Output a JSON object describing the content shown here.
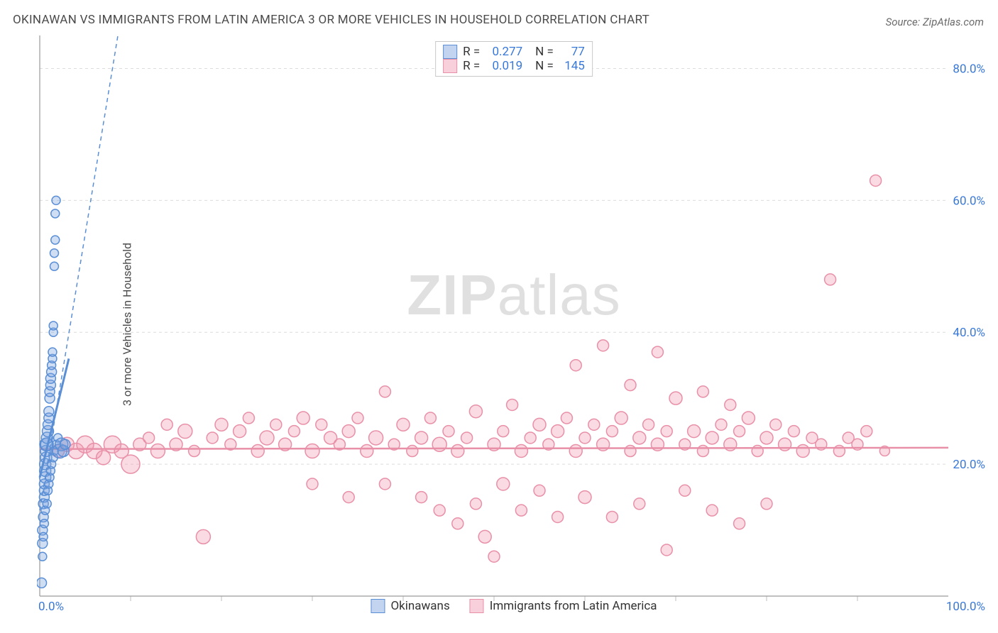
{
  "title": "OKINAWAN VS IMMIGRANTS FROM LATIN AMERICA 3 OR MORE VEHICLES IN HOUSEHOLD CORRELATION CHART",
  "source_prefix": "Source: ",
  "source_site": "ZipAtlas.com",
  "ylabel": "3 or more Vehicles in Household",
  "watermark_zip": "ZIP",
  "watermark_atlas": "atlas",
  "chart": {
    "type": "scatter",
    "background_color": "#ffffff",
    "grid_color": "#dcdcdc",
    "axis_color": "#9a9a9a",
    "tick_color": "#bfbfbf",
    "xlim": [
      0,
      100
    ],
    "ylim": [
      0,
      85
    ],
    "x_axis_label_min": "0.0%",
    "x_axis_label_max": "100.0%",
    "yticks": [
      {
        "v": 20,
        "label": "20.0%"
      },
      {
        "v": 40,
        "label": "40.0%"
      },
      {
        "v": 60,
        "label": "60.0%"
      },
      {
        "v": 80,
        "label": "80.0%"
      }
    ],
    "xticks_minor": [
      10,
      20,
      30,
      40,
      50,
      60,
      70,
      80,
      90
    ],
    "axis_label_color": "#3878d8",
    "axis_label_fontsize": 17,
    "marker_radius_base": 8,
    "marker_stroke_width": 1.5
  },
  "series_a": {
    "name": "Okinawans",
    "fill": "rgba(120,160,220,0.35)",
    "stroke": "#5a8fd6",
    "swatch_fill": "rgba(120,160,220,0.45)",
    "swatch_stroke": "#5a8fd6",
    "R_label": "R =",
    "R_value": "0.277",
    "N_label": "N =",
    "N_value": "77",
    "trend": {
      "x1": 0,
      "y1": 13,
      "x2": 8.6,
      "y2": 85,
      "dash": "6,5",
      "width": 1.5
    },
    "solid_segment": {
      "x1": 0,
      "y1": 18,
      "x2": 3.2,
      "y2": 36,
      "width": 3
    },
    "points": [
      {
        "x": 0.2,
        "y": 2,
        "r": 7
      },
      {
        "x": 0.3,
        "y": 8,
        "r": 7
      },
      {
        "x": 0.3,
        "y": 10,
        "r": 7
      },
      {
        "x": 0.4,
        "y": 12,
        "r": 7
      },
      {
        "x": 0.4,
        "y": 14,
        "r": 7
      },
      {
        "x": 0.5,
        "y": 15,
        "r": 7
      },
      {
        "x": 0.5,
        "y": 16,
        "r": 7
      },
      {
        "x": 0.5,
        "y": 17,
        "r": 7
      },
      {
        "x": 0.6,
        "y": 18,
        "r": 8
      },
      {
        "x": 0.6,
        "y": 19,
        "r": 8
      },
      {
        "x": 0.6,
        "y": 20,
        "r": 8
      },
      {
        "x": 0.7,
        "y": 21,
        "r": 8
      },
      {
        "x": 0.7,
        "y": 22,
        "r": 8
      },
      {
        "x": 0.7,
        "y": 23,
        "r": 9
      },
      {
        "x": 0.8,
        "y": 23,
        "r": 9
      },
      {
        "x": 0.8,
        "y": 24,
        "r": 8
      },
      {
        "x": 0.9,
        "y": 25,
        "r": 8
      },
      {
        "x": 0.9,
        "y": 26,
        "r": 7
      },
      {
        "x": 1.0,
        "y": 27,
        "r": 7
      },
      {
        "x": 1.0,
        "y": 28,
        "r": 7
      },
      {
        "x": 1.1,
        "y": 30,
        "r": 7
      },
      {
        "x": 1.1,
        "y": 31,
        "r": 7
      },
      {
        "x": 1.2,
        "y": 32,
        "r": 7
      },
      {
        "x": 1.2,
        "y": 33,
        "r": 7
      },
      {
        "x": 1.3,
        "y": 34,
        "r": 7
      },
      {
        "x": 1.3,
        "y": 35,
        "r": 6
      },
      {
        "x": 1.4,
        "y": 36,
        "r": 6
      },
      {
        "x": 1.4,
        "y": 37,
        "r": 6
      },
      {
        "x": 1.5,
        "y": 40,
        "r": 6
      },
      {
        "x": 1.5,
        "y": 41,
        "r": 6
      },
      {
        "x": 1.6,
        "y": 50,
        "r": 6
      },
      {
        "x": 1.6,
        "y": 52,
        "r": 6
      },
      {
        "x": 1.7,
        "y": 54,
        "r": 6
      },
      {
        "x": 1.7,
        "y": 58,
        "r": 6
      },
      {
        "x": 1.8,
        "y": 60,
        "r": 6
      },
      {
        "x": 0.3,
        "y": 6,
        "r": 6
      },
      {
        "x": 0.4,
        "y": 9,
        "r": 6
      },
      {
        "x": 0.5,
        "y": 11,
        "r": 6
      },
      {
        "x": 0.6,
        "y": 13,
        "r": 6
      },
      {
        "x": 0.8,
        "y": 14,
        "r": 6
      },
      {
        "x": 0.9,
        "y": 16,
        "r": 6
      },
      {
        "x": 1.0,
        "y": 17,
        "r": 6
      },
      {
        "x": 1.1,
        "y": 18,
        "r": 6
      },
      {
        "x": 1.2,
        "y": 19,
        "r": 6
      },
      {
        "x": 1.3,
        "y": 20,
        "r": 6
      },
      {
        "x": 1.5,
        "y": 21,
        "r": 6
      },
      {
        "x": 1.6,
        "y": 22,
        "r": 6
      },
      {
        "x": 1.8,
        "y": 23,
        "r": 6
      },
      {
        "x": 2.0,
        "y": 24,
        "r": 6
      },
      {
        "x": 2.2,
        "y": 22,
        "r": 10
      },
      {
        "x": 2.4,
        "y": 23,
        "r": 9
      },
      {
        "x": 2.6,
        "y": 22,
        "r": 8
      },
      {
        "x": 2.8,
        "y": 23,
        "r": 7
      }
    ]
  },
  "series_b": {
    "name": "Immigrants from Latin America",
    "fill": "rgba(240,150,175,0.35)",
    "stroke": "#e890a8",
    "swatch_fill": "rgba(240,150,175,0.45)",
    "swatch_stroke": "#e890a8",
    "R_label": "R =",
    "R_value": "0.019",
    "N_label": "N =",
    "N_value": "145",
    "trend": {
      "x1": 0,
      "y1": 22.3,
      "x2": 100,
      "y2": 22.5,
      "width": 2.5
    },
    "points": [
      {
        "x": 2,
        "y": 22,
        "r": 9
      },
      {
        "x": 3,
        "y": 23,
        "r": 10
      },
      {
        "x": 4,
        "y": 22,
        "r": 11
      },
      {
        "x": 5,
        "y": 23,
        "r": 12
      },
      {
        "x": 6,
        "y": 22,
        "r": 11
      },
      {
        "x": 7,
        "y": 21,
        "r": 10
      },
      {
        "x": 8,
        "y": 23,
        "r": 12
      },
      {
        "x": 9,
        "y": 22,
        "r": 10
      },
      {
        "x": 10,
        "y": 20,
        "r": 13
      },
      {
        "x": 11,
        "y": 23,
        "r": 9
      },
      {
        "x": 12,
        "y": 24,
        "r": 8
      },
      {
        "x": 13,
        "y": 22,
        "r": 10
      },
      {
        "x": 14,
        "y": 26,
        "r": 8
      },
      {
        "x": 15,
        "y": 23,
        "r": 9
      },
      {
        "x": 16,
        "y": 25,
        "r": 10
      },
      {
        "x": 17,
        "y": 22,
        "r": 8
      },
      {
        "x": 18,
        "y": 9,
        "r": 10
      },
      {
        "x": 19,
        "y": 24,
        "r": 8
      },
      {
        "x": 20,
        "y": 26,
        "r": 9
      },
      {
        "x": 21,
        "y": 23,
        "r": 8
      },
      {
        "x": 22,
        "y": 25,
        "r": 9
      },
      {
        "x": 23,
        "y": 27,
        "r": 8
      },
      {
        "x": 24,
        "y": 22,
        "r": 9
      },
      {
        "x": 25,
        "y": 24,
        "r": 10
      },
      {
        "x": 26,
        "y": 26,
        "r": 8
      },
      {
        "x": 27,
        "y": 23,
        "r": 9
      },
      {
        "x": 28,
        "y": 25,
        "r": 8
      },
      {
        "x": 29,
        "y": 27,
        "r": 9
      },
      {
        "x": 30,
        "y": 22,
        "r": 10
      },
      {
        "x": 30,
        "y": 17,
        "r": 8
      },
      {
        "x": 31,
        "y": 26,
        "r": 8
      },
      {
        "x": 32,
        "y": 24,
        "r": 9
      },
      {
        "x": 33,
        "y": 23,
        "r": 8
      },
      {
        "x": 34,
        "y": 25,
        "r": 9
      },
      {
        "x": 34,
        "y": 15,
        "r": 8
      },
      {
        "x": 35,
        "y": 27,
        "r": 8
      },
      {
        "x": 36,
        "y": 22,
        "r": 9
      },
      {
        "x": 37,
        "y": 24,
        "r": 10
      },
      {
        "x": 38,
        "y": 31,
        "r": 8
      },
      {
        "x": 38,
        "y": 17,
        "r": 8
      },
      {
        "x": 39,
        "y": 23,
        "r": 8
      },
      {
        "x": 40,
        "y": 26,
        "r": 9
      },
      {
        "x": 41,
        "y": 22,
        "r": 8
      },
      {
        "x": 42,
        "y": 24,
        "r": 9
      },
      {
        "x": 42,
        "y": 15,
        "r": 8
      },
      {
        "x": 43,
        "y": 27,
        "r": 8
      },
      {
        "x": 44,
        "y": 23,
        "r": 10
      },
      {
        "x": 44,
        "y": 13,
        "r": 8
      },
      {
        "x": 45,
        "y": 25,
        "r": 8
      },
      {
        "x": 46,
        "y": 22,
        "r": 9
      },
      {
        "x": 46,
        "y": 11,
        "r": 8
      },
      {
        "x": 47,
        "y": 24,
        "r": 8
      },
      {
        "x": 48,
        "y": 28,
        "r": 9
      },
      {
        "x": 48,
        "y": 14,
        "r": 8
      },
      {
        "x": 49,
        "y": 9,
        "r": 9
      },
      {
        "x": 50,
        "y": 6,
        "r": 8
      },
      {
        "x": 50,
        "y": 23,
        "r": 9
      },
      {
        "x": 51,
        "y": 25,
        "r": 8
      },
      {
        "x": 51,
        "y": 17,
        "r": 9
      },
      {
        "x": 52,
        "y": 29,
        "r": 8
      },
      {
        "x": 53,
        "y": 22,
        "r": 9
      },
      {
        "x": 53,
        "y": 13,
        "r": 8
      },
      {
        "x": 54,
        "y": 24,
        "r": 8
      },
      {
        "x": 55,
        "y": 26,
        "r": 9
      },
      {
        "x": 55,
        "y": 16,
        "r": 8
      },
      {
        "x": 56,
        "y": 23,
        "r": 8
      },
      {
        "x": 57,
        "y": 25,
        "r": 9
      },
      {
        "x": 57,
        "y": 12,
        "r": 8
      },
      {
        "x": 58,
        "y": 27,
        "r": 8
      },
      {
        "x": 59,
        "y": 22,
        "r": 9
      },
      {
        "x": 59,
        "y": 35,
        "r": 8
      },
      {
        "x": 60,
        "y": 24,
        "r": 8
      },
      {
        "x": 60,
        "y": 15,
        "r": 9
      },
      {
        "x": 61,
        "y": 26,
        "r": 8
      },
      {
        "x": 62,
        "y": 23,
        "r": 9
      },
      {
        "x": 62,
        "y": 38,
        "r": 8
      },
      {
        "x": 63,
        "y": 25,
        "r": 8
      },
      {
        "x": 63,
        "y": 12,
        "r": 8
      },
      {
        "x": 64,
        "y": 27,
        "r": 9
      },
      {
        "x": 65,
        "y": 22,
        "r": 8
      },
      {
        "x": 65,
        "y": 32,
        "r": 8
      },
      {
        "x": 66,
        "y": 24,
        "r": 9
      },
      {
        "x": 66,
        "y": 14,
        "r": 8
      },
      {
        "x": 67,
        "y": 26,
        "r": 8
      },
      {
        "x": 68,
        "y": 23,
        "r": 9
      },
      {
        "x": 68,
        "y": 37,
        "r": 8
      },
      {
        "x": 69,
        "y": 25,
        "r": 8
      },
      {
        "x": 69,
        "y": 7,
        "r": 8
      },
      {
        "x": 70,
        "y": 30,
        "r": 9
      },
      {
        "x": 71,
        "y": 23,
        "r": 8
      },
      {
        "x": 71,
        "y": 16,
        "r": 8
      },
      {
        "x": 72,
        "y": 25,
        "r": 9
      },
      {
        "x": 73,
        "y": 22,
        "r": 8
      },
      {
        "x": 73,
        "y": 31,
        "r": 8
      },
      {
        "x": 74,
        "y": 24,
        "r": 9
      },
      {
        "x": 74,
        "y": 13,
        "r": 8
      },
      {
        "x": 75,
        "y": 26,
        "r": 8
      },
      {
        "x": 76,
        "y": 23,
        "r": 9
      },
      {
        "x": 76,
        "y": 29,
        "r": 8
      },
      {
        "x": 77,
        "y": 25,
        "r": 8
      },
      {
        "x": 77,
        "y": 11,
        "r": 8
      },
      {
        "x": 78,
        "y": 27,
        "r": 9
      },
      {
        "x": 79,
        "y": 22,
        "r": 8
      },
      {
        "x": 80,
        "y": 24,
        "r": 9
      },
      {
        "x": 80,
        "y": 14,
        "r": 8
      },
      {
        "x": 81,
        "y": 26,
        "r": 8
      },
      {
        "x": 82,
        "y": 23,
        "r": 9
      },
      {
        "x": 83,
        "y": 25,
        "r": 8
      },
      {
        "x": 84,
        "y": 22,
        "r": 9
      },
      {
        "x": 85,
        "y": 24,
        "r": 8
      },
      {
        "x": 86,
        "y": 23,
        "r": 8
      },
      {
        "x": 87,
        "y": 48,
        "r": 8
      },
      {
        "x": 88,
        "y": 22,
        "r": 8
      },
      {
        "x": 89,
        "y": 24,
        "r": 8
      },
      {
        "x": 90,
        "y": 23,
        "r": 8
      },
      {
        "x": 91,
        "y": 25,
        "r": 8
      },
      {
        "x": 92,
        "y": 63,
        "r": 8
      },
      {
        "x": 93,
        "y": 22,
        "r": 7
      }
    ]
  }
}
